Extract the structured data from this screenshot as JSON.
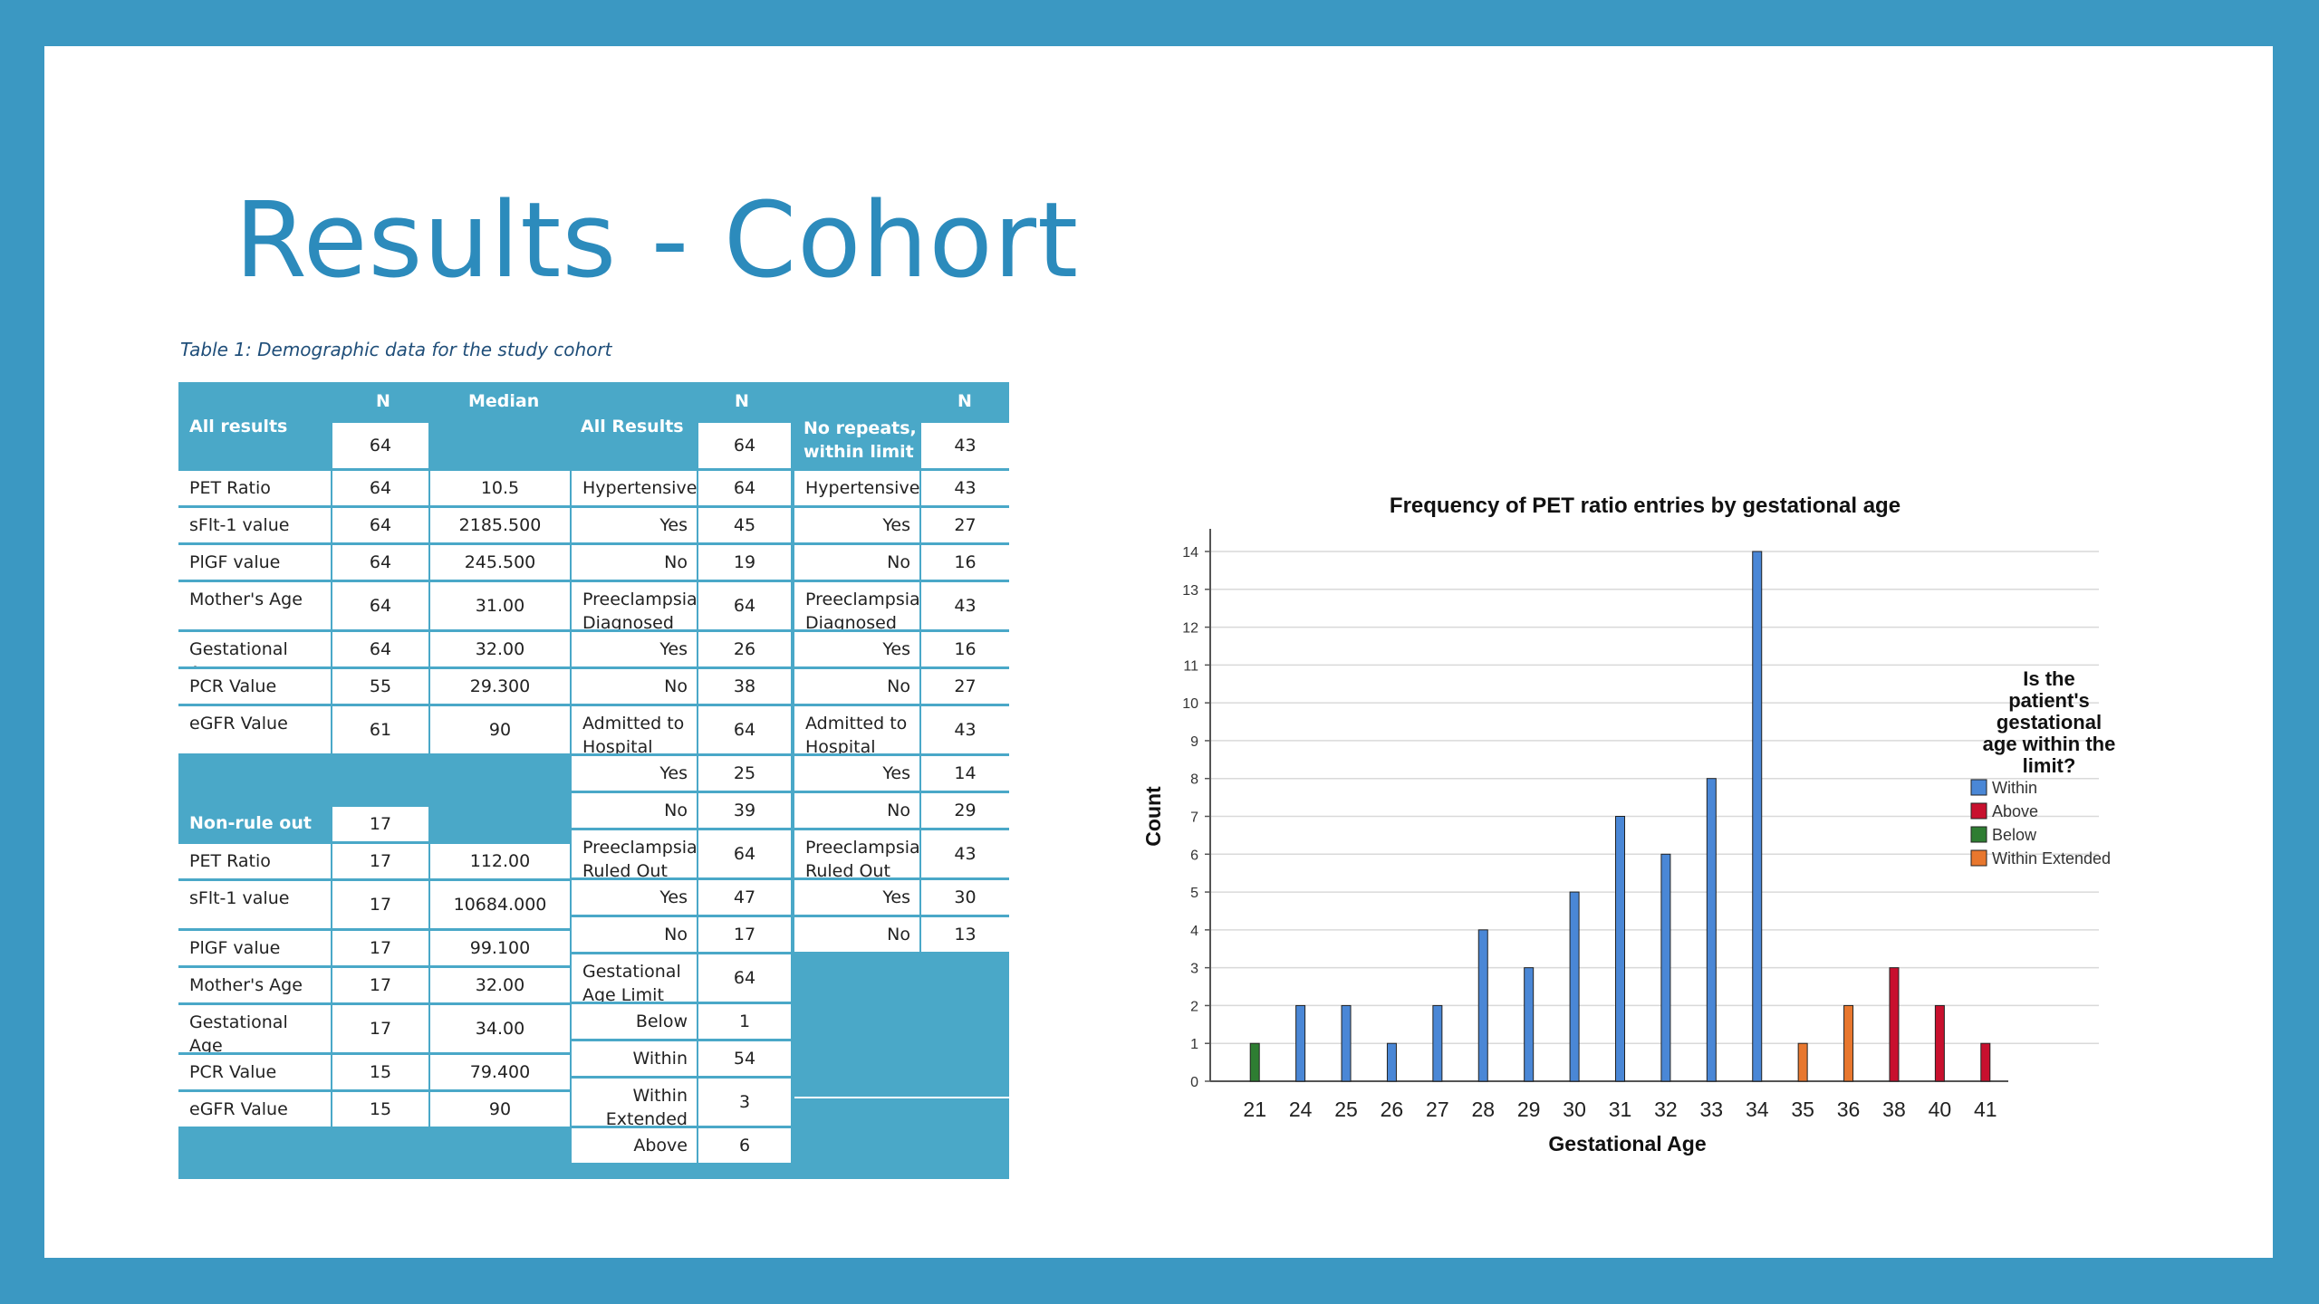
{
  "slide": {
    "title": "Results - Cohort"
  },
  "table": {
    "caption": "Table 1: Demographic data for the study cohort",
    "left": {
      "header_n": "N",
      "header_median": "Median",
      "all_results": {
        "label": "All results",
        "n": "64",
        "median": ""
      },
      "rows1": [
        {
          "label": "PET Ratio",
          "n": "64",
          "median": "10.5"
        },
        {
          "label": "sFlt-1 value",
          "n": "64",
          "median": "2185.500"
        },
        {
          "label": "PlGF value",
          "n": "64",
          "median": "245.500"
        },
        {
          "label": "Mother's Age",
          "n": "64",
          "median": "31.00"
        },
        {
          "label": "Gestational Age",
          "n": "64",
          "median": "32.00"
        },
        {
          "label": "PCR Value",
          "n": "55",
          "median": "29.300"
        },
        {
          "label": "eGFR Value",
          "n": "61",
          "median": "90"
        }
      ],
      "non_rule_out": {
        "label": "Non-rule out",
        "n": "17"
      },
      "rows2": [
        {
          "label": "PET Ratio",
          "n": "17",
          "median": "112.00"
        },
        {
          "label": "sFlt-1 value",
          "n": "17",
          "median": "10684.000"
        },
        {
          "label": "PlGF value",
          "n": "17",
          "median": "99.100"
        },
        {
          "label": "Mother's Age",
          "n": "17",
          "median": "32.00"
        },
        {
          "label": "Gestational Age",
          "n": "17",
          "median": "34.00"
        },
        {
          "label": "PCR Value",
          "n": "15",
          "median": "79.400"
        },
        {
          "label": "eGFR Value",
          "n": "15",
          "median": "90"
        }
      ]
    },
    "middle": {
      "header_n": "N",
      "all_results": {
        "label": "All Results",
        "n": "64"
      },
      "rows": [
        {
          "label": "Hypertensive",
          "n": "64"
        },
        {
          "label": "Yes",
          "n": "45"
        },
        {
          "label": "No",
          "n": "19"
        },
        {
          "label": "Preeclampsia Diagnosed",
          "n": "64"
        },
        {
          "label": "Yes",
          "n": "26"
        },
        {
          "label": "No",
          "n": "38"
        },
        {
          "label": "Admitted to Hospital",
          "n": "64"
        },
        {
          "label": "Yes",
          "n": "25"
        },
        {
          "label": "No",
          "n": "39"
        },
        {
          "label": "Preeclampsia Ruled Out",
          "n": "64"
        },
        {
          "label": "Yes",
          "n": "47"
        },
        {
          "label": "No",
          "n": "17"
        },
        {
          "label": "Gestational Age Limit",
          "n": "64"
        },
        {
          "label": "Below",
          "n": "1"
        },
        {
          "label": "Within",
          "n": "54"
        },
        {
          "label": "Within Extended",
          "n": "3"
        },
        {
          "label": "Above",
          "n": "6"
        }
      ]
    },
    "right": {
      "header_n": "N",
      "no_repeats": {
        "label": "No repeats, within limit",
        "n": "43"
      },
      "rows": [
        {
          "label": "Hypertensive",
          "n": "43"
        },
        {
          "label": "Yes",
          "n": "27"
        },
        {
          "label": "No",
          "n": "16"
        },
        {
          "label": "Preeclampsia Diagnosed",
          "n": "43"
        },
        {
          "label": "Yes",
          "n": "16"
        },
        {
          "label": "No",
          "n": "27"
        },
        {
          "label": "Admitted to Hospital",
          "n": "43"
        },
        {
          "label": "Yes",
          "n": "14"
        },
        {
          "label": "No",
          "n": "29"
        },
        {
          "label": "Preeclampsia Ruled Out",
          "n": "43"
        },
        {
          "label": "Yes",
          "n": "30"
        },
        {
          "label": "No",
          "n": "13"
        }
      ]
    }
  },
  "chart_data": {
    "type": "bar",
    "title": "Frequency of PET ratio entries by gestational age",
    "xlabel": "Gestational Age",
    "ylabel": "Count",
    "ylim": [
      0,
      14
    ],
    "yticks": [
      "0",
      "1",
      "2",
      "3",
      "4",
      "5",
      "6",
      "7",
      "8",
      "9",
      "10",
      "11",
      "12",
      "13",
      "14"
    ],
    "grid": true,
    "legend_placement": "right",
    "legend_title": "Is the patient's gestational age within the limit?",
    "categories": [
      "21",
      "24",
      "25",
      "26",
      "27",
      "28",
      "29",
      "30",
      "31",
      "32",
      "33",
      "34",
      "35",
      "36",
      "38",
      "40",
      "41"
    ],
    "series": [
      {
        "name": "Within",
        "color": "#4a87d6",
        "values": [
          0,
          2,
          2,
          1,
          2,
          4,
          3,
          5,
          7,
          6,
          8,
          14,
          0,
          0,
          0,
          0,
          0
        ]
      },
      {
        "name": "Above",
        "color": "#c8102e",
        "values": [
          0,
          0,
          0,
          0,
          0,
          0,
          0,
          0,
          0,
          0,
          0,
          0,
          0,
          0,
          3,
          2,
          1
        ]
      },
      {
        "name": "Below",
        "color": "#2e7d32",
        "values": [
          1,
          0,
          0,
          0,
          0,
          0,
          0,
          0,
          0,
          0,
          0,
          0,
          0,
          0,
          0,
          0,
          0
        ]
      },
      {
        "name": "Within Extended",
        "color": "#e8772e",
        "values": [
          0,
          0,
          0,
          0,
          0,
          0,
          0,
          0,
          0,
          0,
          0,
          0,
          1,
          2,
          0,
          0,
          0
        ]
      }
    ]
  }
}
